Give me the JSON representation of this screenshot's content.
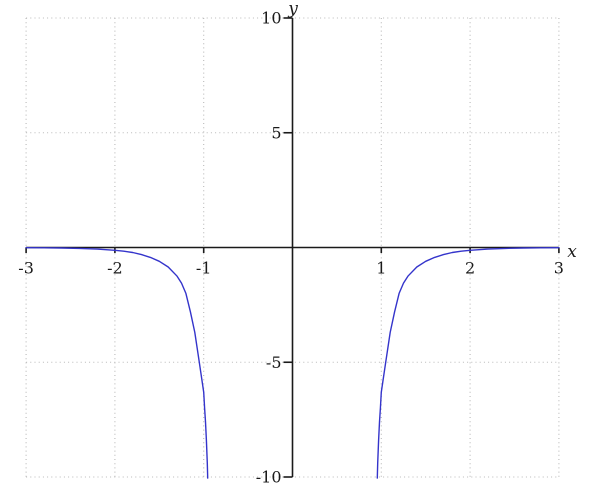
{
  "figure": {
    "background": "#ffffff",
    "title": ""
  },
  "style": {
    "axis_color": "#1a1a1a",
    "grid_color": "#b9b9b9",
    "tick_label_color": "#1a1a1a",
    "curve_color": "#3434cb"
  },
  "chart_data": {
    "type": "line",
    "title": "",
    "xlabel": "x",
    "ylabel": "y",
    "xlim": [
      -3,
      3
    ],
    "ylim": [
      -10,
      10
    ],
    "grid": "dotted",
    "legend": "none",
    "x_tick_values": [
      -3,
      -2,
      -1,
      1,
      2,
      3
    ],
    "x_tick_labels": [
      "-3",
      "-2",
      "-1",
      "1",
      "2",
      "3"
    ],
    "y_tick_values": [
      10,
      5,
      -5,
      -10
    ],
    "y_tick_labels": [
      "10",
      "5",
      "-5",
      "-10"
    ],
    "description": "Even function, negative below the x-axis, tails approaching y=0 from below for large |x|, plunging steeply downward out of view near x = -1 and x = +1; nothing visible between the two branches",
    "series": [
      {
        "name": "left-branch",
        "color": "#3434cb",
        "points": [
          [
            -3.0,
            -0.01
          ],
          [
            -2.8,
            -0.015
          ],
          [
            -2.6,
            -0.02
          ],
          [
            -2.4,
            -0.04
          ],
          [
            -2.2,
            -0.07
          ],
          [
            -2.0,
            -0.12
          ],
          [
            -1.9,
            -0.16
          ],
          [
            -1.8,
            -0.22
          ],
          [
            -1.7,
            -0.31
          ],
          [
            -1.6,
            -0.43
          ],
          [
            -1.5,
            -0.6
          ],
          [
            -1.4,
            -0.85
          ],
          [
            -1.3,
            -1.25
          ],
          [
            -1.25,
            -1.55
          ],
          [
            -1.2,
            -2.0
          ],
          [
            -1.15,
            -2.8
          ],
          [
            -1.1,
            -3.7
          ],
          [
            -1.05,
            -5.0
          ],
          [
            -1.0,
            -6.3
          ],
          [
            -0.99,
            -7.0
          ],
          [
            -0.98,
            -7.6
          ],
          [
            -0.97,
            -8.4
          ],
          [
            -0.96,
            -9.4
          ],
          [
            -0.955,
            -10.05
          ]
        ]
      },
      {
        "name": "right-branch",
        "color": "#3434cb",
        "points": [
          [
            0.955,
            -10.05
          ],
          [
            0.96,
            -9.4
          ],
          [
            0.97,
            -8.4
          ],
          [
            0.98,
            -7.6
          ],
          [
            0.99,
            -7.0
          ],
          [
            1.0,
            -6.3
          ],
          [
            1.05,
            -5.0
          ],
          [
            1.1,
            -3.7
          ],
          [
            1.15,
            -2.8
          ],
          [
            1.2,
            -2.0
          ],
          [
            1.25,
            -1.55
          ],
          [
            1.3,
            -1.25
          ],
          [
            1.4,
            -0.85
          ],
          [
            1.5,
            -0.6
          ],
          [
            1.6,
            -0.43
          ],
          [
            1.7,
            -0.31
          ],
          [
            1.8,
            -0.22
          ],
          [
            1.9,
            -0.16
          ],
          [
            2.0,
            -0.12
          ],
          [
            2.2,
            -0.07
          ],
          [
            2.4,
            -0.04
          ],
          [
            2.6,
            -0.02
          ],
          [
            2.8,
            -0.015
          ],
          [
            3.0,
            -0.01
          ]
        ]
      }
    ]
  }
}
